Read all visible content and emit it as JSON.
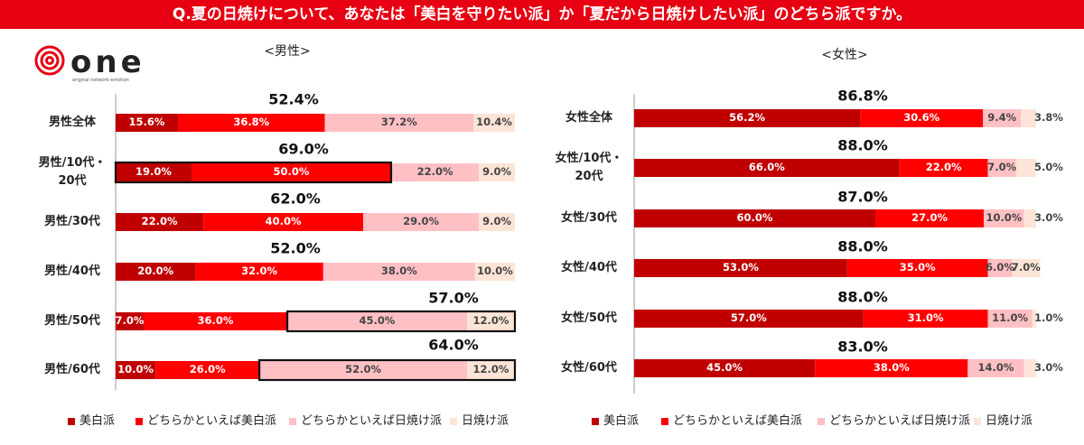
{
  "header": {
    "title": "Q.夏の日焼けについて、あなたは「美白を守りたい派」か「夏だから日焼けしたい派」のどちら派ですか。"
  },
  "logo": {
    "name": "one",
    "tagline": "original network emotion"
  },
  "chart_data": [
    {
      "type": "stacked-bar",
      "title": "<男性>",
      "categories": [
        "男性全体",
        "男性/10代・\n20代",
        "男性/30代",
        "男性/40代",
        "男性/50代",
        "男性/60代"
      ],
      "xlim": [
        0,
        100
      ],
      "annotations": [
        "52.4%",
        "69.0%",
        "62.0%",
        "52.0%",
        "57.0%",
        "64.0%"
      ],
      "series": [
        {
          "name": "美白派",
          "color": "#c00000",
          "values": [
            15.6,
            19,
            22,
            20,
            7,
            10
          ],
          "value_labels": [
            "15.6%",
            "19.0%",
            "22.0%",
            "20.0%",
            "7.0%",
            "10.0%"
          ]
        },
        {
          "name": "どちらかといえば美白派",
          "color": "#ff0000",
          "values": [
            36.8,
            50,
            40,
            32,
            36,
            26
          ],
          "value_labels": [
            "36.8%",
            "50.0%",
            "40.0%",
            "32.0%",
            "36.0%",
            "26.0%"
          ]
        },
        {
          "name": "どちらかといえば日焼け派",
          "color": "#ffc0c4",
          "values": [
            37.2,
            22,
            29,
            38,
            45,
            52
          ],
          "value_labels": [
            "37.2%",
            "22.0%",
            "29.0%",
            "38.0%",
            "45.0%",
            "52.0%"
          ]
        },
        {
          "name": "日焼け派",
          "color": "#fce4d6",
          "values": [
            10.4,
            9,
            9,
            10,
            12,
            12
          ],
          "value_labels": [
            "10.4%",
            "9.0%",
            "9.0%",
            "10.0%",
            "12.0%",
            "12.0%"
          ]
        }
      ]
    },
    {
      "type": "stacked-bar",
      "title": "<女性>",
      "categories": [
        "女性全体",
        "女性/10代・\n20代",
        "女性/30代",
        "女性/40代",
        "女性/50代",
        "女性/60代"
      ],
      "xlim": [
        0,
        100
      ],
      "annotations": [
        "86.8%",
        "88.0%",
        "87.0%",
        "88.0%",
        "88.0%",
        "83.0%"
      ],
      "series": [
        {
          "name": "美白派",
          "color": "#c00000",
          "values": [
            56.2,
            66,
            60,
            53,
            57,
            45
          ],
          "value_labels": [
            "56.2%",
            "66.0%",
            "60.0%",
            "53.0%",
            "57.0%",
            "45.0%"
          ]
        },
        {
          "name": "どちらかといえば美白派",
          "color": "#ff0000",
          "values": [
            30.6,
            22,
            27,
            35,
            31,
            38
          ],
          "value_labels": [
            "30.6%",
            "22.0%",
            "27.0%",
            "35.0%",
            "31.0%",
            "38.0%"
          ]
        },
        {
          "name": "どちらかといえば日焼け派",
          "color": "#ffc0c4",
          "values": [
            9.4,
            7,
            10,
            6,
            11,
            14
          ],
          "value_labels": [
            "9.4%",
            "7.0%",
            "10.0%",
            "6.0%",
            "11.0%",
            "14.0%"
          ]
        },
        {
          "name": "日焼け派",
          "color": "#fce4d6",
          "values": [
            3.8,
            5,
            3,
            7,
            1,
            3
          ],
          "value_labels": [
            "3.8%",
            "5.0%",
            "3.0%",
            "7.0%",
            "1.0%",
            "3.0%"
          ]
        }
      ]
    }
  ]
}
